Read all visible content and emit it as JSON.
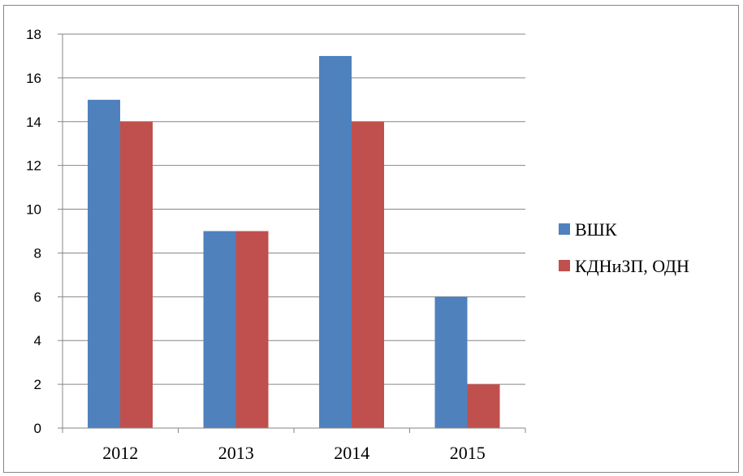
{
  "chart_data": {
    "type": "bar",
    "title": "",
    "xlabel": "",
    "ylabel": "",
    "categories": [
      "2012",
      "2013",
      "2014",
      "2015"
    ],
    "series": [
      {
        "name": "ВШК",
        "values": [
          15,
          9,
          17,
          6
        ],
        "color": "#4F81BD"
      },
      {
        "name": "КДНиЗП, ОДН",
        "values": [
          14,
          9,
          14,
          2
        ],
        "color": "#C0504D"
      }
    ],
    "ylim": [
      0,
      18
    ],
    "yticks": [
      "0",
      "2",
      "4",
      "6",
      "8",
      "10",
      "12",
      "14",
      "16",
      "18"
    ],
    "grid": true,
    "legend": "right"
  }
}
